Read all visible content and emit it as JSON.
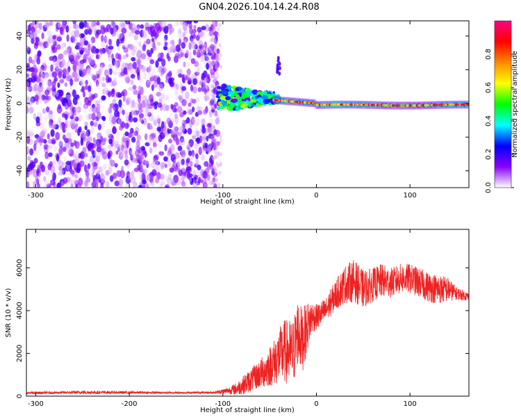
{
  "title": "GN04.2026.104.14.24.R08",
  "chart_data": [
    {
      "type": "heatmap",
      "xlabel": "Height of straight line (km)",
      "ylabel": "Frequency (Hz)",
      "xlim": [
        -310,
        163
      ],
      "ylim": [
        -50,
        49
      ],
      "xticks": [
        -300,
        -200,
        -100,
        0,
        100
      ],
      "xtick_labels": [
        "-300",
        "-200",
        "-100",
        "0",
        "100"
      ],
      "yticks": [
        -40,
        -20,
        0,
        20,
        40
      ],
      "ytick_labels": [
        "-40",
        "-20",
        "0",
        "20",
        "40"
      ],
      "grid": false,
      "description_regions": [
        {
          "x_range": [
            -310,
            -105
          ],
          "f_range": [
            -50,
            49
          ],
          "amplitude": "low (0.0-0.25), scattered noise"
        },
        {
          "x_range": [
            -105,
            -40
          ],
          "f_range": [
            -15,
            25
          ],
          "amplitude": "mixed 0.2-0.6"
        },
        {
          "x_range": [
            -40,
            163
          ],
          "f_center": [
            3,
            -2
          ],
          "amplitude": "high 0.6-1.0 narrow band"
        }
      ],
      "colorbar": {
        "label": "Normalized spectral amplitude",
        "range": [
          0.0,
          1.0
        ],
        "ticks": [
          0.0,
          0.2,
          0.4,
          0.6,
          0.8
        ],
        "tick_labels": [
          "0.0",
          "0.2",
          "0.4",
          "0.6",
          "0.8"
        ],
        "colors": [
          "#ffffff",
          "#8a00ff",
          "#0000ff",
          "#00ffff",
          "#00ff00",
          "#ffff00",
          "#ff8800",
          "#ff0000",
          "#ff0088"
        ]
      }
    },
    {
      "type": "line",
      "xlabel": "Height of straight line (km)",
      "ylabel": "SNR (10 * v/v)",
      "xlim": [
        -310,
        163
      ],
      "ylim": [
        0,
        7800
      ],
      "xticks": [
        -300,
        -200,
        -100,
        0,
        100
      ],
      "xtick_labels": [
        "-300",
        "-200",
        "-100",
        "0",
        "100"
      ],
      "yticks": [
        0,
        2000,
        4000,
        6000
      ],
      "ytick_labels": [
        "0",
        "2000",
        "4000",
        "6000"
      ],
      "grid": false,
      "series": [
        {
          "name": "SNR",
          "color": "#ee2222",
          "x": [
            -310,
            -280,
            -250,
            -200,
            -150,
            -110,
            -95,
            -85,
            -75,
            -65,
            -55,
            -45,
            -35,
            -25,
            -20,
            -15,
            -10,
            -5,
            0,
            10,
            20,
            30,
            40,
            50,
            60,
            70,
            80,
            90,
            100,
            110,
            120,
            130,
            140,
            150,
            163
          ],
          "mean": [
            150,
            160,
            180,
            170,
            160,
            170,
            250,
            350,
            600,
            900,
            1200,
            1600,
            2100,
            2000,
            3000,
            2600,
            3200,
            3700,
            3700,
            4000,
            4700,
            5200,
            5400,
            5000,
            5200,
            5400,
            5300,
            5500,
            5500,
            5300,
            5100,
            5000,
            5000,
            4800,
            4650
          ],
          "noise": [
            60,
            60,
            80,
            60,
            50,
            50,
            150,
            300,
            500,
            600,
            800,
            1100,
            1500,
            1600,
            1600,
            1500,
            1200,
            800,
            600,
            600,
            700,
            900,
            1000,
            900,
            800,
            800,
            700,
            700,
            700,
            700,
            700,
            700,
            600,
            300,
            200
          ]
        }
      ]
    }
  ]
}
